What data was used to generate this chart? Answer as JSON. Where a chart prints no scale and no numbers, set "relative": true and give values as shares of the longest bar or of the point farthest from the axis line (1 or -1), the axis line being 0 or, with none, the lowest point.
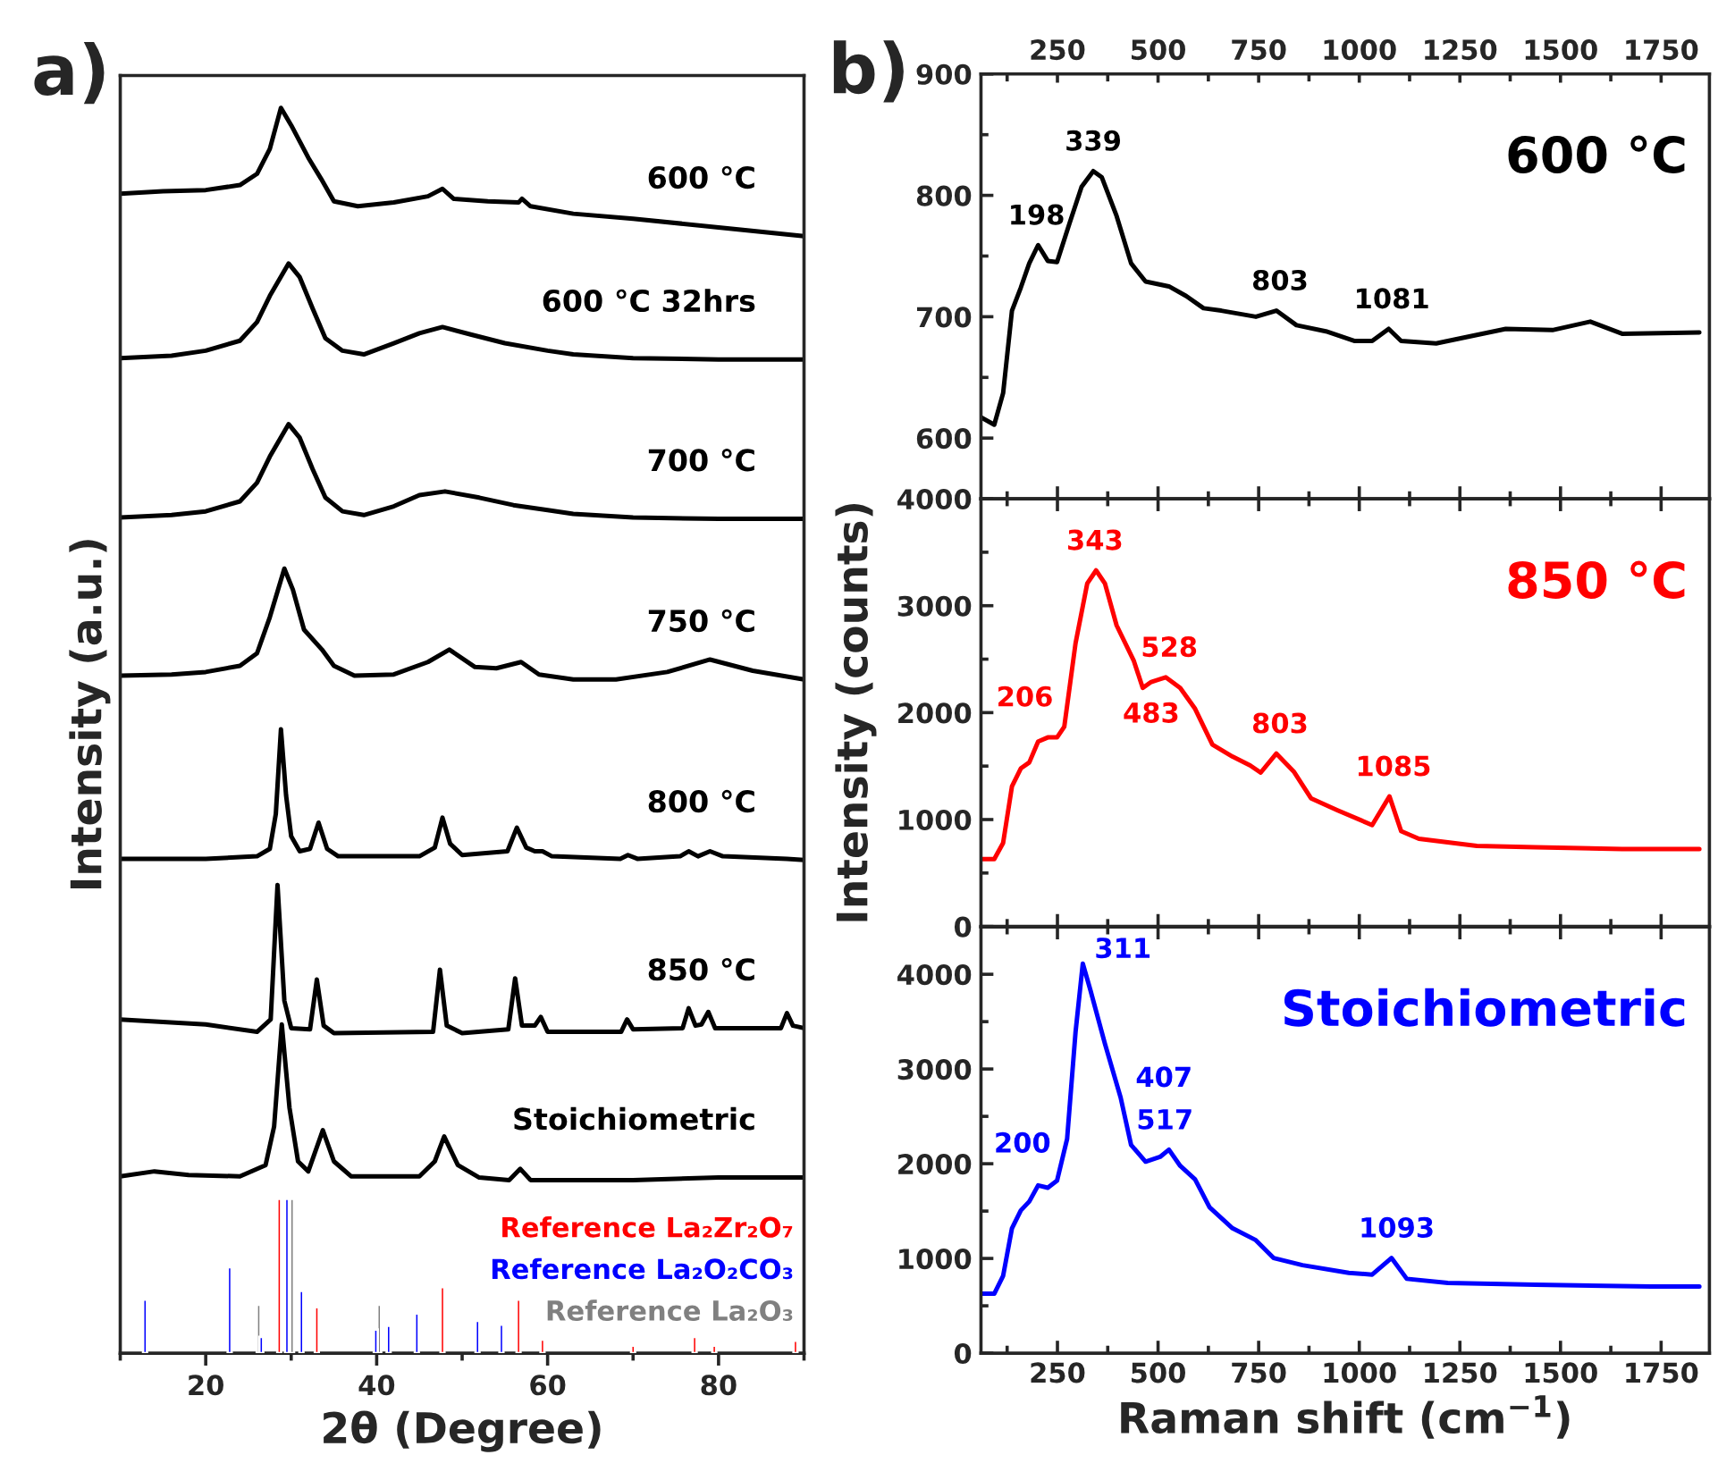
{
  "chart_data": [
    {
      "type": "line",
      "relative": true,
      "xlabel": "2θ (Degree)",
      "ylabel": "Intensity (a.u.)",
      "annotations": [
        "a)"
      ],
      "xlim": [
        10,
        90
      ],
      "xticks": [
        {
          "value": 10,
          "label": null
        },
        20,
        {
          "value": 30,
          "label": null
        },
        40,
        {
          "value": 50,
          "label": null
        },
        60,
        {
          "value": 70,
          "label": null
        },
        80,
        {
          "value": 90,
          "label": null
        }
      ],
      "tick_labels": "x",
      "series": [
        {
          "name": "600 °C",
          "color": "#000000",
          "x": [
            10,
            15,
            20,
            24,
            26,
            27.5,
            28.8,
            30,
            32,
            33.5,
            35,
            37.8,
            42,
            46,
            47.7,
            49,
            53,
            56.6,
            57,
            58,
            63,
            70,
            80,
            90
          ],
          "values": [
            0.931,
            0.933,
            0.934,
            0.938,
            0.947,
            0.967,
            1.0,
            0.986,
            0.96,
            0.943,
            0.925,
            0.921,
            0.924,
            0.929,
            0.935,
            0.927,
            0.925,
            0.924,
            0.927,
            0.921,
            0.915,
            0.911,
            0.904,
            0.897
          ]
        },
        {
          "name": "600 °C 32hrs",
          "color": "#000000",
          "x": [
            10,
            16,
            20,
            24,
            26,
            27.5,
            29.7,
            31,
            32.5,
            34,
            36,
            38.5,
            42,
            45,
            47.7,
            51,
            55,
            60,
            63,
            70,
            80,
            90
          ],
          "values": [
            0.799,
            0.801,
            0.805,
            0.813,
            0.828,
            0.849,
            0.875,
            0.864,
            0.839,
            0.815,
            0.805,
            0.802,
            0.811,
            0.819,
            0.824,
            0.818,
            0.811,
            0.805,
            0.802,
            0.799,
            0.798,
            0.798
          ]
        },
        {
          "name": "700 °C",
          "color": "#000000",
          "x": [
            10,
            16,
            20,
            24,
            26,
            27.5,
            29.7,
            31,
            32.5,
            34,
            36,
            38.5,
            42,
            45,
            48,
            52,
            56,
            60,
            63,
            70,
            80,
            90
          ],
          "values": [
            0.671,
            0.673,
            0.676,
            0.684,
            0.699,
            0.72,
            0.746,
            0.735,
            0.71,
            0.687,
            0.676,
            0.673,
            0.68,
            0.689,
            0.692,
            0.687,
            0.681,
            0.677,
            0.674,
            0.671,
            0.67,
            0.67
          ]
        },
        {
          "name": "750 °C",
          "color": "#000000",
          "x": [
            10,
            16,
            20,
            24,
            26,
            27.5,
            29.2,
            30.2,
            31.5,
            33.6,
            35,
            37.4,
            42,
            46,
            48.5,
            51.5,
            54,
            56.9,
            59,
            63,
            68,
            74,
            79,
            84,
            90
          ],
          "values": [
            0.544,
            0.545,
            0.547,
            0.552,
            0.562,
            0.591,
            0.63,
            0.613,
            0.581,
            0.565,
            0.552,
            0.544,
            0.545,
            0.555,
            0.565,
            0.551,
            0.55,
            0.555,
            0.545,
            0.541,
            0.541,
            0.547,
            0.557,
            0.548,
            0.541
          ]
        },
        {
          "name": "800 °C",
          "color": "#000000",
          "x": [
            10,
            20,
            26,
            27.5,
            28.2,
            28.8,
            29.4,
            30,
            31,
            32.2,
            33.2,
            34.2,
            35.5,
            45,
            46.8,
            47.7,
            48.6,
            50,
            55.3,
            56.4,
            57.5,
            58.5,
            59.4,
            60.5,
            68.5,
            69.4,
            70.5,
            75.5,
            76.5,
            77.6,
            79,
            80.5,
            88,
            90
          ],
          "values": [
            0.397,
            0.397,
            0.399,
            0.405,
            0.433,
            0.501,
            0.448,
            0.415,
            0.403,
            0.405,
            0.426,
            0.405,
            0.399,
            0.399,
            0.406,
            0.43,
            0.409,
            0.4,
            0.403,
            0.422,
            0.406,
            0.403,
            0.403,
            0.399,
            0.397,
            0.4,
            0.397,
            0.399,
            0.403,
            0.399,
            0.403,
            0.399,
            0.397,
            0.396
          ]
        },
        {
          "name": "850 °C",
          "color": "#000000",
          "x": [
            10,
            20,
            26,
            27.6,
            28.4,
            29.2,
            30,
            32.2,
            33,
            33.8,
            35,
            46.6,
            47.4,
            48.2,
            50,
            55.4,
            56.2,
            57,
            58.5,
            59.2,
            60,
            68.6,
            69.3,
            70,
            75.8,
            76.5,
            77.3,
            78,
            78.8,
            79.6,
            87.3,
            88,
            88.7,
            90
          ],
          "values": [
            0.268,
            0.264,
            0.258,
            0.268,
            0.376,
            0.283,
            0.261,
            0.26,
            0.3,
            0.263,
            0.257,
            0.258,
            0.308,
            0.263,
            0.257,
            0.26,
            0.301,
            0.263,
            0.263,
            0.27,
            0.258,
            0.258,
            0.268,
            0.26,
            0.261,
            0.277,
            0.263,
            0.264,
            0.274,
            0.261,
            0.261,
            0.273,
            0.263,
            0.261
          ]
        },
        {
          "name": "Stoichiometric",
          "color": "#000000",
          "x": [
            10,
            14,
            18,
            24,
            27,
            28,
            28.9,
            29.8,
            30.8,
            32,
            33.7,
            35,
            37,
            45,
            46.8,
            47.9,
            49.5,
            52,
            55.5,
            56.8,
            58,
            70,
            80,
            90
          ],
          "values": [
            0.142,
            0.146,
            0.143,
            0.142,
            0.151,
            0.182,
            0.264,
            0.197,
            0.154,
            0.146,
            0.179,
            0.154,
            0.142,
            0.142,
            0.154,
            0.174,
            0.151,
            0.141,
            0.139,
            0.148,
            0.139,
            0.139,
            0.141,
            0.141
          ]
        },
        {
          "type": "bar",
          "name": "Reference La₂Zr₂O₇",
          "color": "#ff0000",
          "x": [
            28.6,
            33.0,
            47.7,
            56.6,
            59.4,
            70.0,
            77.2,
            79.5,
            89.0
          ],
          "values": [
            0.124,
            0.037,
            0.053,
            0.043,
            0.011,
            0.006,
            0.013,
            0.006,
            0.01
          ]
        },
        {
          "type": "bar",
          "name": "Reference La₂O₂CO₃",
          "color": "#0000ff",
          "x": [
            12.9,
            22.8,
            26.5,
            29.5,
            31.2,
            39.9,
            41.4,
            44.7,
            51.8,
            54.6
          ],
          "values": [
            0.043,
            0.069,
            0.013,
            0.124,
            0.05,
            0.019,
            0.022,
            0.032,
            0.026,
            0.023
          ]
        },
        {
          "type": "bar",
          "name": "Reference La₂O₃",
          "color": "#808080",
          "x": [
            26.2,
            30.1,
            40.3
          ],
          "values": [
            0.039,
            0.124,
            0.039
          ]
        }
      ]
    },
    {
      "type": "line",
      "annotations": [
        "b)",
        {
          "text": "198",
          "x": 198,
          "y": 759
        },
        {
          "text": "339",
          "x": 339,
          "y": 820
        },
        {
          "text": "803",
          "x": 803,
          "y": 705
        },
        {
          "text": "1081",
          "x": 1081,
          "y": 690
        }
      ],
      "xlim": [
        60,
        1870
      ],
      "xticks": [
        {
          "value": 125,
          "label": null
        },
        250,
        {
          "value": 375,
          "label": null
        },
        500,
        {
          "value": 625,
          "label": null
        },
        750,
        {
          "value": 875,
          "label": null
        },
        1000,
        {
          "value": 1125,
          "label": null
        },
        1250,
        {
          "value": 1375,
          "label": null
        },
        1500,
        {
          "value": 1625,
          "label": null
        },
        1750
      ],
      "x2lim": [
        60,
        1870
      ],
      "x2ticks": [
        {
          "value": 125,
          "label": null
        },
        250,
        {
          "value": 375,
          "label": null
        },
        500,
        {
          "value": 625,
          "label": null
        },
        750,
        {
          "value": 875,
          "label": null
        },
        1000,
        {
          "value": 1125,
          "label": null
        },
        1250,
        {
          "value": 1375,
          "label": null
        },
        1500,
        {
          "value": 1625,
          "label": null
        },
        1750
      ],
      "ylim": [
        550,
        900
      ],
      "yticks": [
        600,
        {
          "value": 650,
          "label": null
        },
        700,
        {
          "value": 750,
          "label": null
        },
        800,
        {
          "value": 850,
          "label": null
        },
        900
      ],
      "tick_labels": "y",
      "series": [
        {
          "name": "600 °C",
          "color": "#000000",
          "x": [
            61,
            93,
            115,
            137,
            159,
            180,
            202,
            226,
            249,
            281,
            310,
            339,
            360,
            397,
            433,
            469,
            527,
            570,
            613,
            657,
            743,
            794,
            844,
            917,
            989,
            1032,
            1073,
            1104,
            1191,
            1292,
            1364,
            1480,
            1574,
            1653,
            1845
          ],
          "values": [
            617,
            611,
            637,
            705,
            724,
            744,
            759,
            746,
            745,
            778,
            807,
            820,
            815,
            783,
            744,
            729,
            725,
            717,
            707,
            705,
            700,
            705,
            693,
            688,
            680,
            680,
            690,
            680,
            678,
            685,
            690,
            689,
            696,
            686,
            687
          ]
        }
      ]
    },
    {
      "type": "line",
      "ylabel": "Intensity (counts)",
      "annotations": [
        {
          "text": "206",
          "x": 206,
          "y": 1750
        },
        {
          "text": "343",
          "x": 343,
          "y": 3330
        },
        {
          "text": "528",
          "x": 528,
          "y": 2331
        },
        {
          "text": "483",
          "x": 483,
          "y": 2287
        },
        {
          "text": "803",
          "x": 803,
          "y": 1617
        },
        {
          "text": "1085",
          "x": 1085,
          "y": 1216
        }
      ],
      "xlim": [
        60,
        1870
      ],
      "xticks": [
        {
          "value": 125,
          "label": null
        },
        250,
        {
          "value": 375,
          "label": null
        },
        500,
        {
          "value": 625,
          "label": null
        },
        750,
        {
          "value": 875,
          "label": null
        },
        1000,
        {
          "value": 1125,
          "label": null
        },
        1250,
        {
          "value": 1375,
          "label": null
        },
        1500,
        {
          "value": 1625,
          "label": null
        },
        1750
      ],
      "ylim": [
        0,
        4000
      ],
      "yticks": [
        0,
        {
          "value": 500,
          "label": null
        },
        1000,
        {
          "value": 1500,
          "label": null
        },
        2000,
        {
          "value": 2500,
          "label": null
        },
        3000,
        {
          "value": 3500,
          "label": null
        },
        4000
      ],
      "tick_labels": "y",
      "series": [
        {
          "name": "850 °C",
          "color": "#ff0000",
          "x": [
            61,
            93,
            115,
            137,
            159,
            180,
            202,
            226,
            249,
            267,
            295,
            324,
            346,
            368,
            397,
            440,
            462,
            483,
            519,
            555,
            592,
            635,
            685,
            729,
            755,
            794,
            837,
            880,
            945,
            1032,
            1075,
            1104,
            1148,
            1292,
            1437,
            1653,
            1845
          ],
          "values": [
            630,
            630,
            781,
            1311,
            1478,
            1534,
            1729,
            1768,
            1768,
            1868,
            2649,
            3207,
            3330,
            3207,
            2816,
            2482,
            2231,
            2287,
            2331,
            2231,
            2036,
            1701,
            1589,
            1506,
            1439,
            1617,
            1450,
            1199,
            1088,
            948,
            1216,
            892,
            820,
            753,
            742,
            725,
            725
          ]
        }
      ]
    },
    {
      "type": "line",
      "xlabel": "Raman shift (cm$^{−1}$)",
      "annotations": [
        {
          "text": "200",
          "x": 200,
          "y": 1771
        },
        {
          "text": "311",
          "x": 311,
          "y": 4113
        },
        {
          "text": "407",
          "x": 407,
          "y": 2700
        },
        {
          "text": "517",
          "x": 517,
          "y": 2148
        },
        {
          "text": "1093",
          "x": 1093,
          "y": 1005
        }
      ],
      "xlim": [
        60,
        1870
      ],
      "xticks": [
        {
          "value": 125,
          "label": null
        },
        250,
        {
          "value": 375,
          "label": null
        },
        500,
        {
          "value": 625,
          "label": null
        },
        750,
        {
          "value": 875,
          "label": null
        },
        1000,
        {
          "value": 1125,
          "label": null
        },
        1250,
        {
          "value": 1375,
          "label": null
        },
        1500,
        {
          "value": 1625,
          "label": null
        },
        1750
      ],
      "ylim": [
        0,
        4500
      ],
      "yticks": [
        0,
        {
          "value": 500,
          "label": null
        },
        1000,
        {
          "value": 1500,
          "label": null
        },
        2000,
        {
          "value": 2500,
          "label": null
        },
        3000,
        {
          "value": 3500,
          "label": null
        },
        4000
      ],
      "series": [
        {
          "name": "Stoichiometric",
          "color": "#0000ff",
          "x": [
            61,
            93,
            115,
            137,
            159,
            180,
            202,
            226,
            249,
            274,
            295,
            313,
            332,
            368,
            407,
            433,
            469,
            505,
            527,
            555,
            592,
            628,
            685,
            743,
            787,
            859,
            974,
            1032,
            1080,
            1118,
            1220,
            1437,
            1725,
            1845
          ],
          "values": [
            628,
            628,
            816,
            1319,
            1507,
            1601,
            1771,
            1746,
            1821,
            2261,
            3391,
            4113,
            3831,
            3266,
            2700,
            2198,
            2022,
            2072,
            2148,
            1978,
            1834,
            1539,
            1319,
            1193,
            1005,
            929,
            848,
            829,
            1005,
            785,
            741,
            722,
            703,
            703
          ]
        }
      ]
    }
  ]
}
